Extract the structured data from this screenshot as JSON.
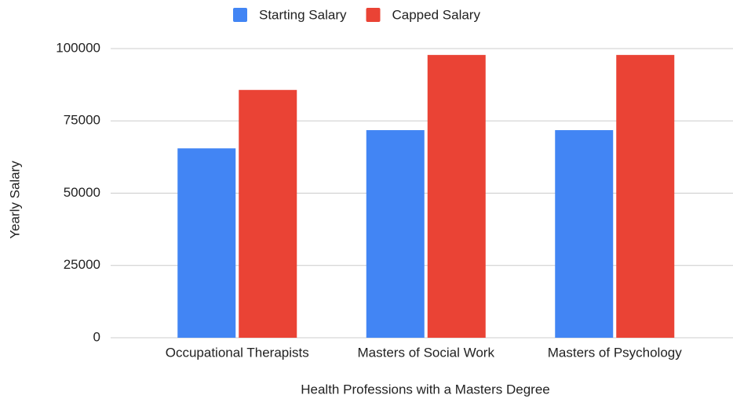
{
  "chart_data": {
    "type": "bar",
    "categories": [
      "Occupational Therapists",
      "Masters of Social Work",
      "Masters of Psychology"
    ],
    "series": [
      {
        "name": "Starting Salary",
        "color": "#4285f4",
        "values": [
          65500,
          71800,
          71800
        ]
      },
      {
        "name": "Capped Salary",
        "color": "#ea4335",
        "values": [
          85700,
          97800,
          97800
        ]
      }
    ],
    "x_label": "Health Professions with a Masters Degree",
    "y_label": "Yearly Salary",
    "ylim": [
      0,
      100000
    ],
    "yticks": [
      0,
      25000,
      50000,
      75000,
      100000
    ],
    "grid": true,
    "legend": "top"
  }
}
